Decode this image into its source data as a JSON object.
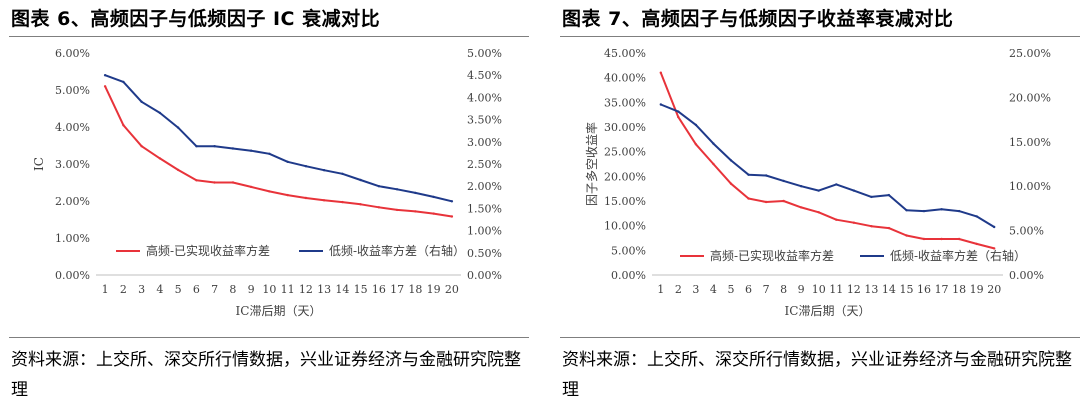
{
  "chart_data": [
    {
      "id": "left",
      "type": "line",
      "figure_title": "图表 6、高频因子与低频因子 IC 衰减对比",
      "xlabel": "IC滞后期（天）",
      "ylabel": "IC",
      "ylabel_right": "",
      "categories": [
        "1",
        "2",
        "3",
        "4",
        "5",
        "6",
        "7",
        "8",
        "9",
        "10",
        "11",
        "12",
        "13",
        "14",
        "15",
        "16",
        "17",
        "18",
        "19",
        "20"
      ],
      "ylim": [
        0,
        6
      ],
      "yticks": [
        "0.00%",
        "1.00%",
        "2.00%",
        "3.00%",
        "4.00%",
        "5.00%",
        "6.00%"
      ],
      "ylim_right": [
        0,
        5
      ],
      "yticks_right": [
        "0.00%",
        "0.50%",
        "1.00%",
        "1.50%",
        "2.00%",
        "2.50%",
        "3.00%",
        "3.50%",
        "4.00%",
        "4.50%",
        "5.00%"
      ],
      "series": [
        {
          "name": "高频-已实现收益率方差",
          "axis": "left",
          "color": "#e8333a",
          "values": [
            5.1,
            4.05,
            3.48,
            3.15,
            2.84,
            2.56,
            2.5,
            2.5,
            2.38,
            2.26,
            2.16,
            2.08,
            2.02,
            1.97,
            1.91,
            1.83,
            1.76,
            1.72,
            1.66,
            1.58
          ]
        },
        {
          "name": "低频-收益率方差（右轴）",
          "axis": "right",
          "color": "#1f3a8a",
          "values": [
            4.5,
            4.35,
            3.9,
            3.65,
            3.32,
            2.9,
            2.9,
            2.85,
            2.8,
            2.73,
            2.55,
            2.45,
            2.36,
            2.28,
            2.14,
            2.0,
            1.93,
            1.85,
            1.76,
            1.66
          ]
        }
      ]
    },
    {
      "id": "right",
      "type": "line",
      "figure_title": "图表 7、高频因子与低频因子收益率衰减对比",
      "xlabel": "IC滞后期（天）",
      "ylabel": "因子多空收益率",
      "ylabel_right": "",
      "categories": [
        "1",
        "2",
        "3",
        "4",
        "5",
        "6",
        "7",
        "8",
        "9",
        "10",
        "11",
        "12",
        "13",
        "14",
        "15",
        "16",
        "17",
        "18",
        "19",
        "20"
      ],
      "ylim": [
        0,
        45
      ],
      "yticks": [
        "0.00%",
        "5.00%",
        "10.00%",
        "15.00%",
        "20.00%",
        "25.00%",
        "30.00%",
        "35.00%",
        "40.00%",
        "45.00%"
      ],
      "ylim_right": [
        0,
        25
      ],
      "yticks_right": [
        "0.00%",
        "5.00%",
        "10.00%",
        "15.00%",
        "20.00%",
        "25.00%"
      ],
      "series": [
        {
          "name": "高频-已实现收益率方差",
          "axis": "left",
          "color": "#e8333a",
          "values": [
            41.0,
            32.0,
            26.5,
            22.5,
            18.5,
            15.5,
            14.8,
            15.0,
            13.7,
            12.7,
            11.2,
            10.6,
            9.9,
            9.5,
            8.0,
            7.3,
            7.3,
            7.3,
            6.3,
            5.4
          ]
        },
        {
          "name": "低频-收益率方差（右轴）",
          "axis": "right",
          "color": "#1f3a8a",
          "values": [
            19.2,
            18.4,
            16.9,
            14.8,
            12.9,
            11.3,
            11.2,
            10.6,
            10.0,
            9.5,
            10.2,
            9.5,
            8.8,
            9.0,
            7.3,
            7.2,
            7.4,
            7.2,
            6.6,
            5.4
          ]
        }
      ]
    }
  ],
  "left_panel": {
    "source": "资料来源：上交所、深交所行情数据，兴业证券经济与金融研究院整理"
  },
  "right_panel": {
    "source": "资料来源：上交所、深交所行情数据，兴业证券经济与金融研究院整理"
  }
}
